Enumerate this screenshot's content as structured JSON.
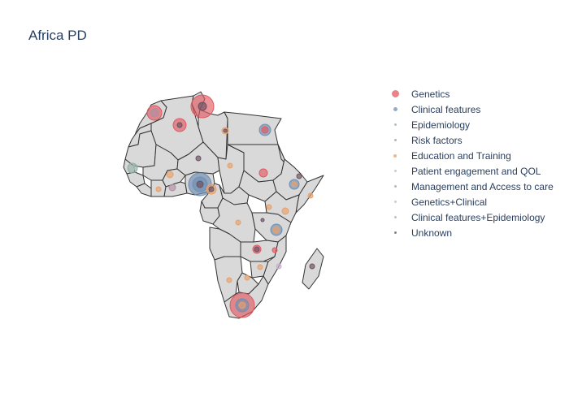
{
  "title": "Africa PD",
  "map": {
    "land_color": "#d9d9d9",
    "border_color": "#333333"
  },
  "legend": {
    "items": [
      {
        "label": "Genetics",
        "color": "#e05a62",
        "icon": "circle-marker",
        "level": 1.0
      },
      {
        "label": "Clinical features",
        "color": "#6f8fb3",
        "icon": "circle-marker",
        "level": 0.6
      },
      {
        "label": "Epidemiology",
        "color": "#8fb0a0",
        "icon": "circle-marker",
        "level": 0.3
      },
      {
        "label": "Risk factors",
        "color": "#b08fa0",
        "icon": "circle-marker",
        "level": 0.3
      },
      {
        "label": "Education and Training",
        "color": "#e8a06a",
        "icon": "circle-marker",
        "level": 0.45
      },
      {
        "label": "Patient engagement and QOL",
        "color": "#c7b0d0",
        "icon": "circle-marker",
        "level": 0.25
      },
      {
        "label": "Management and Access to care",
        "color": "#a0a0a0",
        "icon": "circle-marker",
        "level": 0.25
      },
      {
        "label": "Genetics+Clinical",
        "color": "#b0c0c0",
        "icon": "circle-marker",
        "level": 0.25
      },
      {
        "label": "Clinical features+Epidemiology",
        "color": "#c0a0c0",
        "icon": "circle-marker",
        "level": 0.25
      },
      {
        "label": "Unknown",
        "color": "#6a5060",
        "icon": "circle-marker",
        "level": 0.25
      }
    ]
  }
}
